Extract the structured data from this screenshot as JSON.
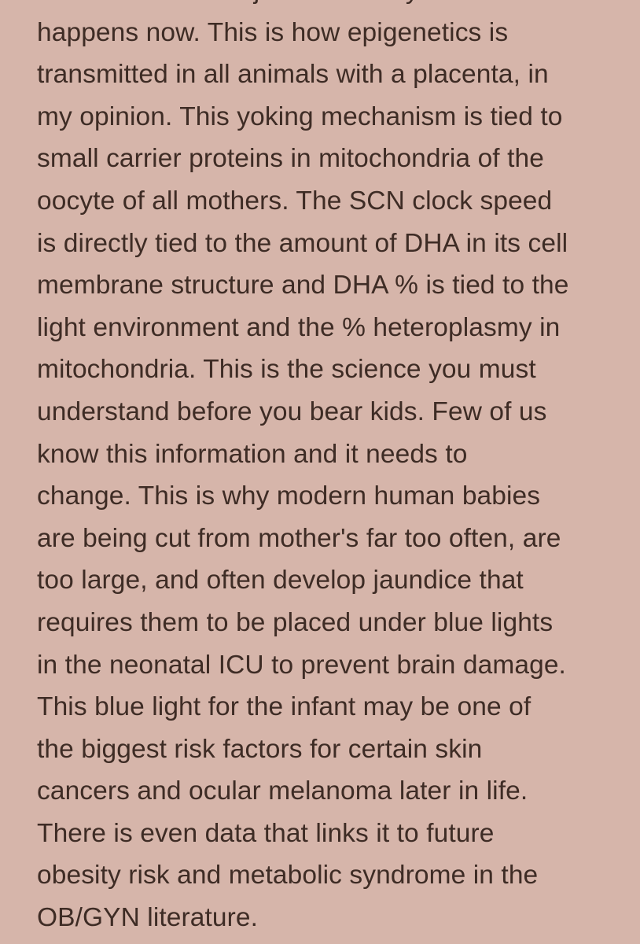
{
  "article": {
    "lines": [
      "and this is how all jaundice likely",
      "happens now. This is how epigenetics is",
      "transmitted in all animals with a placenta, in",
      "my opinion. This yoking mechanism is tied to",
      "small carrier proteins in mitochondria of the",
      "oocyte of all mothers. The SCN clock speed",
      "is directly tied to the amount of DHA in its cell",
      "membrane structure and DHA % is tied to the",
      "light environment and the % heteroplasmy in",
      "mitochondria. This is the science you must",
      "understand before you bear kids. Few of us",
      "know this information and it needs to",
      "change. This is why modern human babies",
      "are being cut from mother's far too often, are",
      "too large, and often develop jaundice that",
      "requires them to be placed under blue lights",
      "in the neonatal ICU to prevent brain damage.",
      "This blue light for the infant may be one of",
      "the biggest risk factors for certain skin",
      "cancers and ocular melanoma later in life.",
      "There is even data that links it to future",
      "obesity risk and metabolic syndrome in the",
      "OB/GYN literature."
    ]
  },
  "colors": {
    "background": "#d6b5aa",
    "text": "#3e2c25"
  }
}
